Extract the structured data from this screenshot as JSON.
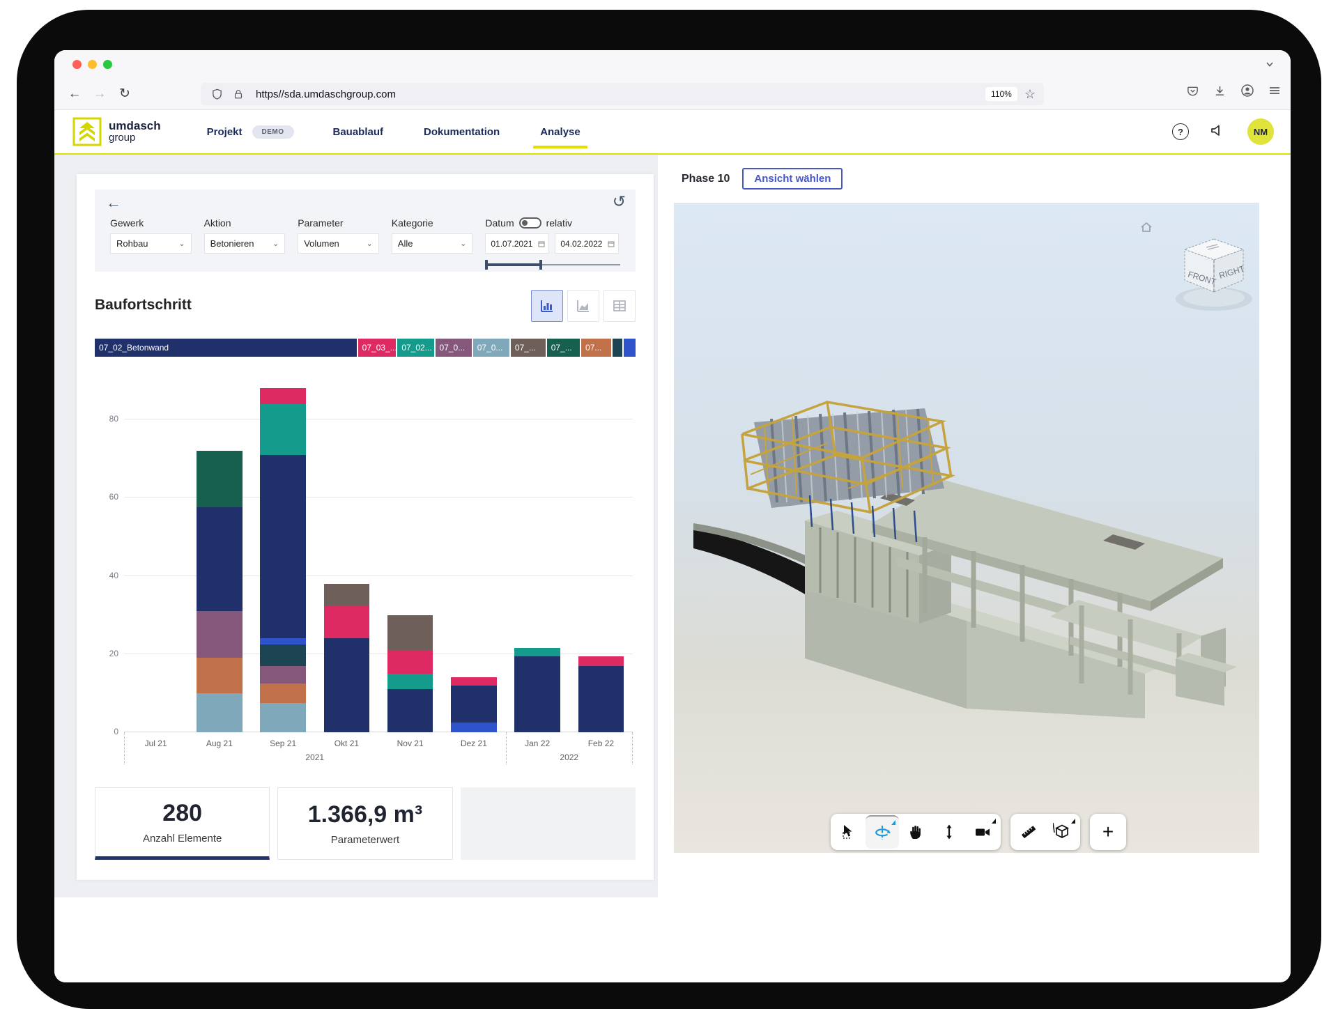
{
  "browser": {
    "url": "https//sda.umdaschgroup.com",
    "zoom_badge": "110%",
    "traffic_lights": [
      "#ff5f57",
      "#febc2e",
      "#28c840"
    ]
  },
  "nav": {
    "brand_top": "umdasch",
    "brand_bottom": "group",
    "badge": "DEMO",
    "items": [
      {
        "label": "Projekt"
      },
      {
        "label": "Bauablauf"
      },
      {
        "label": "Dokumentation"
      },
      {
        "label": "Analyse",
        "active": true
      }
    ],
    "avatar": "NM"
  },
  "filters": {
    "back_icon": "←",
    "reset_icon": "↺",
    "fields": [
      {
        "label": "Gewerk",
        "value": "Rohbau"
      },
      {
        "label": "Aktion",
        "value": "Betonieren"
      },
      {
        "label": "Parameter",
        "value": "Volumen"
      },
      {
        "label": "Kategorie",
        "value": "Alle"
      }
    ],
    "datum": {
      "label": "Datum",
      "toggle_label": "relativ",
      "toggle_on": false,
      "from": "01.07.2021",
      "to": "04.02.2022"
    }
  },
  "chart_title": "Baufortschritt",
  "chart_data": {
    "type": "bar",
    "stacked": true,
    "title": "Baufortschritt",
    "categories": [
      "Jul 21",
      "Aug 21",
      "Sep 21",
      "Okt 21",
      "Nov 21",
      "Dez 21",
      "Jan 22",
      "Feb 22"
    ],
    "year_groups": [
      {
        "label": "2021",
        "span": 6
      },
      {
        "label": "2022",
        "span": 2
      }
    ],
    "ylim": [
      0,
      90
    ],
    "yticks": [
      0,
      20,
      40,
      60,
      80
    ],
    "grid": true,
    "colors": {
      "navy": "#20306b",
      "pink": "#de2a63",
      "teal": "#149b8c",
      "mauve": "#84577b",
      "steel": "#7fa8ba",
      "brown": "#6f5f5a",
      "darkgreen": "#17604f",
      "copper": "#c0714a",
      "darkslate": "#1c4452",
      "royal": "#2f53cb"
    },
    "series": [
      {
        "name": "07_0… (steel)",
        "color": "steel",
        "values": [
          0,
          10,
          7.5,
          0,
          0,
          0,
          0,
          0
        ]
      },
      {
        "name": "07… (copper)",
        "color": "copper",
        "values": [
          0,
          9,
          5,
          0,
          0,
          0,
          0,
          0
        ]
      },
      {
        "name": "07_0… (mauve)",
        "color": "mauve",
        "values": [
          0,
          12,
          4.5,
          0,
          0,
          0,
          0,
          0
        ]
      },
      {
        "name": "(darkslate)",
        "color": "darkslate",
        "values": [
          0,
          0,
          5.5,
          0,
          0,
          0,
          0,
          0
        ]
      },
      {
        "name": "(royalblue)",
        "color": "royal",
        "values": [
          0,
          0,
          1.5,
          0,
          0,
          2.5,
          0,
          0
        ]
      },
      {
        "name": "07_02_Betonwand",
        "color": "navy",
        "values": [
          0,
          26.5,
          47,
          24,
          11,
          9.5,
          19.5,
          17
        ]
      },
      {
        "name": "07_02… (teal)",
        "color": "teal",
        "values": [
          0,
          0,
          13,
          0,
          4,
          0,
          2,
          0
        ]
      },
      {
        "name": "07_03_… (pink)",
        "color": "pink",
        "values": [
          0,
          0,
          4,
          8.5,
          6,
          2,
          0,
          2.5
        ]
      },
      {
        "name": "07_… (brown)",
        "color": "brown",
        "values": [
          0,
          0,
          0,
          5.5,
          9,
          0,
          0,
          0
        ]
      },
      {
        "name": "07_… (darkgreen)",
        "color": "darkgreen",
        "values": [
          0,
          14.5,
          0,
          0,
          0,
          0,
          0,
          0
        ]
      }
    ],
    "legend_position": "top",
    "legend": [
      {
        "key": "navy",
        "label": "07_02_Betonwand",
        "flex": 7.6
      },
      {
        "key": "pink",
        "label": "07_03_...",
        "flex": 1.0
      },
      {
        "key": "teal",
        "label": "07_02...",
        "flex": 0.95
      },
      {
        "key": "mauve",
        "label": "07_0...",
        "flex": 0.95
      },
      {
        "key": "steel",
        "label": "07_0...",
        "flex": 0.95
      },
      {
        "key": "brown",
        "label": "07_...",
        "flex": 0.9
      },
      {
        "key": "darkgreen",
        "label": "07_...",
        "flex": 0.85
      },
      {
        "key": "copper",
        "label": "07...",
        "flex": 0.75
      },
      {
        "key": "darkslate",
        "label": "",
        "flex": 0.18
      },
      {
        "key": "royal",
        "label": "",
        "flex": 0.22
      }
    ]
  },
  "stats": [
    {
      "value": "280",
      "label": "Anzahl Elemente"
    },
    {
      "value": "1.366,9 m³",
      "label": "Parameterwert"
    }
  ],
  "viewer": {
    "phase": "Phase 10",
    "view_button": "Ansicht wählen",
    "cube": {
      "front": "FRONT",
      "right": "RIGHT"
    },
    "toolbar": [
      "select",
      "orbit",
      "pan",
      "zoom-vertical",
      "camera",
      "measure",
      "section-box",
      "add"
    ]
  }
}
